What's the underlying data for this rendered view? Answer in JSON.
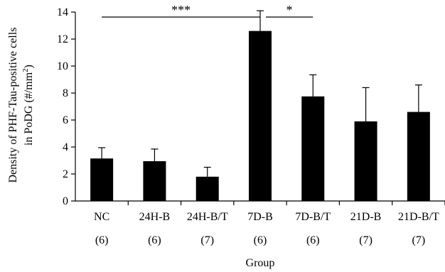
{
  "chart_data": {
    "type": "bar",
    "categories": [
      "NC",
      "24H-B",
      "24H-B/T",
      "7D-B",
      "7D-B/T",
      "21D-B",
      "21D-B/T"
    ],
    "sample_sizes": [
      "(6)",
      "(6)",
      "(7)",
      "(6)",
      "(6)",
      "(7)",
      "(7)"
    ],
    "values": [
      3.15,
      2.95,
      1.8,
      12.6,
      7.75,
      5.9,
      6.6
    ],
    "errors": [
      0.8,
      0.9,
      0.7,
      1.5,
      1.6,
      2.5,
      2.0
    ],
    "xlabel": "Group",
    "ylabel_line1": "Density of PHF-Tau-positive cells",
    "ylabel_line2_prefix": "in PoDG (#/mm",
    "ylabel_line2_sup": "2",
    "ylabel_line2_suffix": ")",
    "ylim": [
      0,
      14
    ],
    "yticks": [
      0,
      2,
      4,
      6,
      8,
      10,
      12,
      14
    ],
    "bar_color": "#000000",
    "significance": [
      {
        "from": 0,
        "to": 3,
        "label": "***"
      },
      {
        "from": 3,
        "to": 4,
        "label": "*"
      }
    ]
  }
}
